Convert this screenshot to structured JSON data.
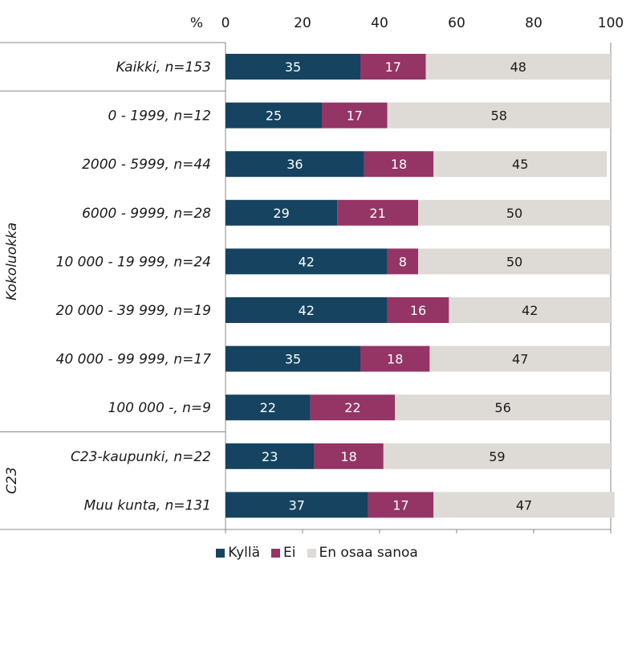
{
  "chart_data": {
    "type": "bar",
    "orientation": "horizontal",
    "stacked": true,
    "axis_unit_label": "%",
    "xlim": [
      0,
      100
    ],
    "x_ticks": [
      "0",
      "20",
      "40",
      "60",
      "80",
      "100"
    ],
    "categories": [
      "Kaikki, n=153",
      "0 - 1999, n=12",
      "2000 - 5999, n=44",
      "6000 - 9999, n=28",
      "10 000 - 19 999, n=24",
      "20 000 - 39 999, n=19",
      "40 000 - 99 999, n=17",
      "100 000 -, n=9",
      "C23-kaupunki, n=22",
      "Muu kunta, n=131"
    ],
    "groups": [
      {
        "label": "Kokoluokka",
        "from": 1,
        "to": 7
      },
      {
        "label": "C23",
        "from": 8,
        "to": 9
      }
    ],
    "series": [
      {
        "name": "Kyllä",
        "color": "#154360",
        "label_color": "#ffffff",
        "values": [
          35,
          25,
          36,
          29,
          42,
          42,
          35,
          22,
          23,
          37
        ]
      },
      {
        "name": "Ei",
        "color": "#943565",
        "label_color": "#ffffff",
        "values": [
          17,
          17,
          18,
          21,
          8,
          16,
          18,
          22,
          18,
          17
        ]
      },
      {
        "name": "En osaa sanoa",
        "color": "#dedad6",
        "label_color": "#1a1a1a",
        "values": [
          48,
          58,
          45,
          50,
          50,
          42,
          47,
          56,
          59,
          47
        ]
      }
    ],
    "legend_position": "bottom",
    "grid": false
  }
}
